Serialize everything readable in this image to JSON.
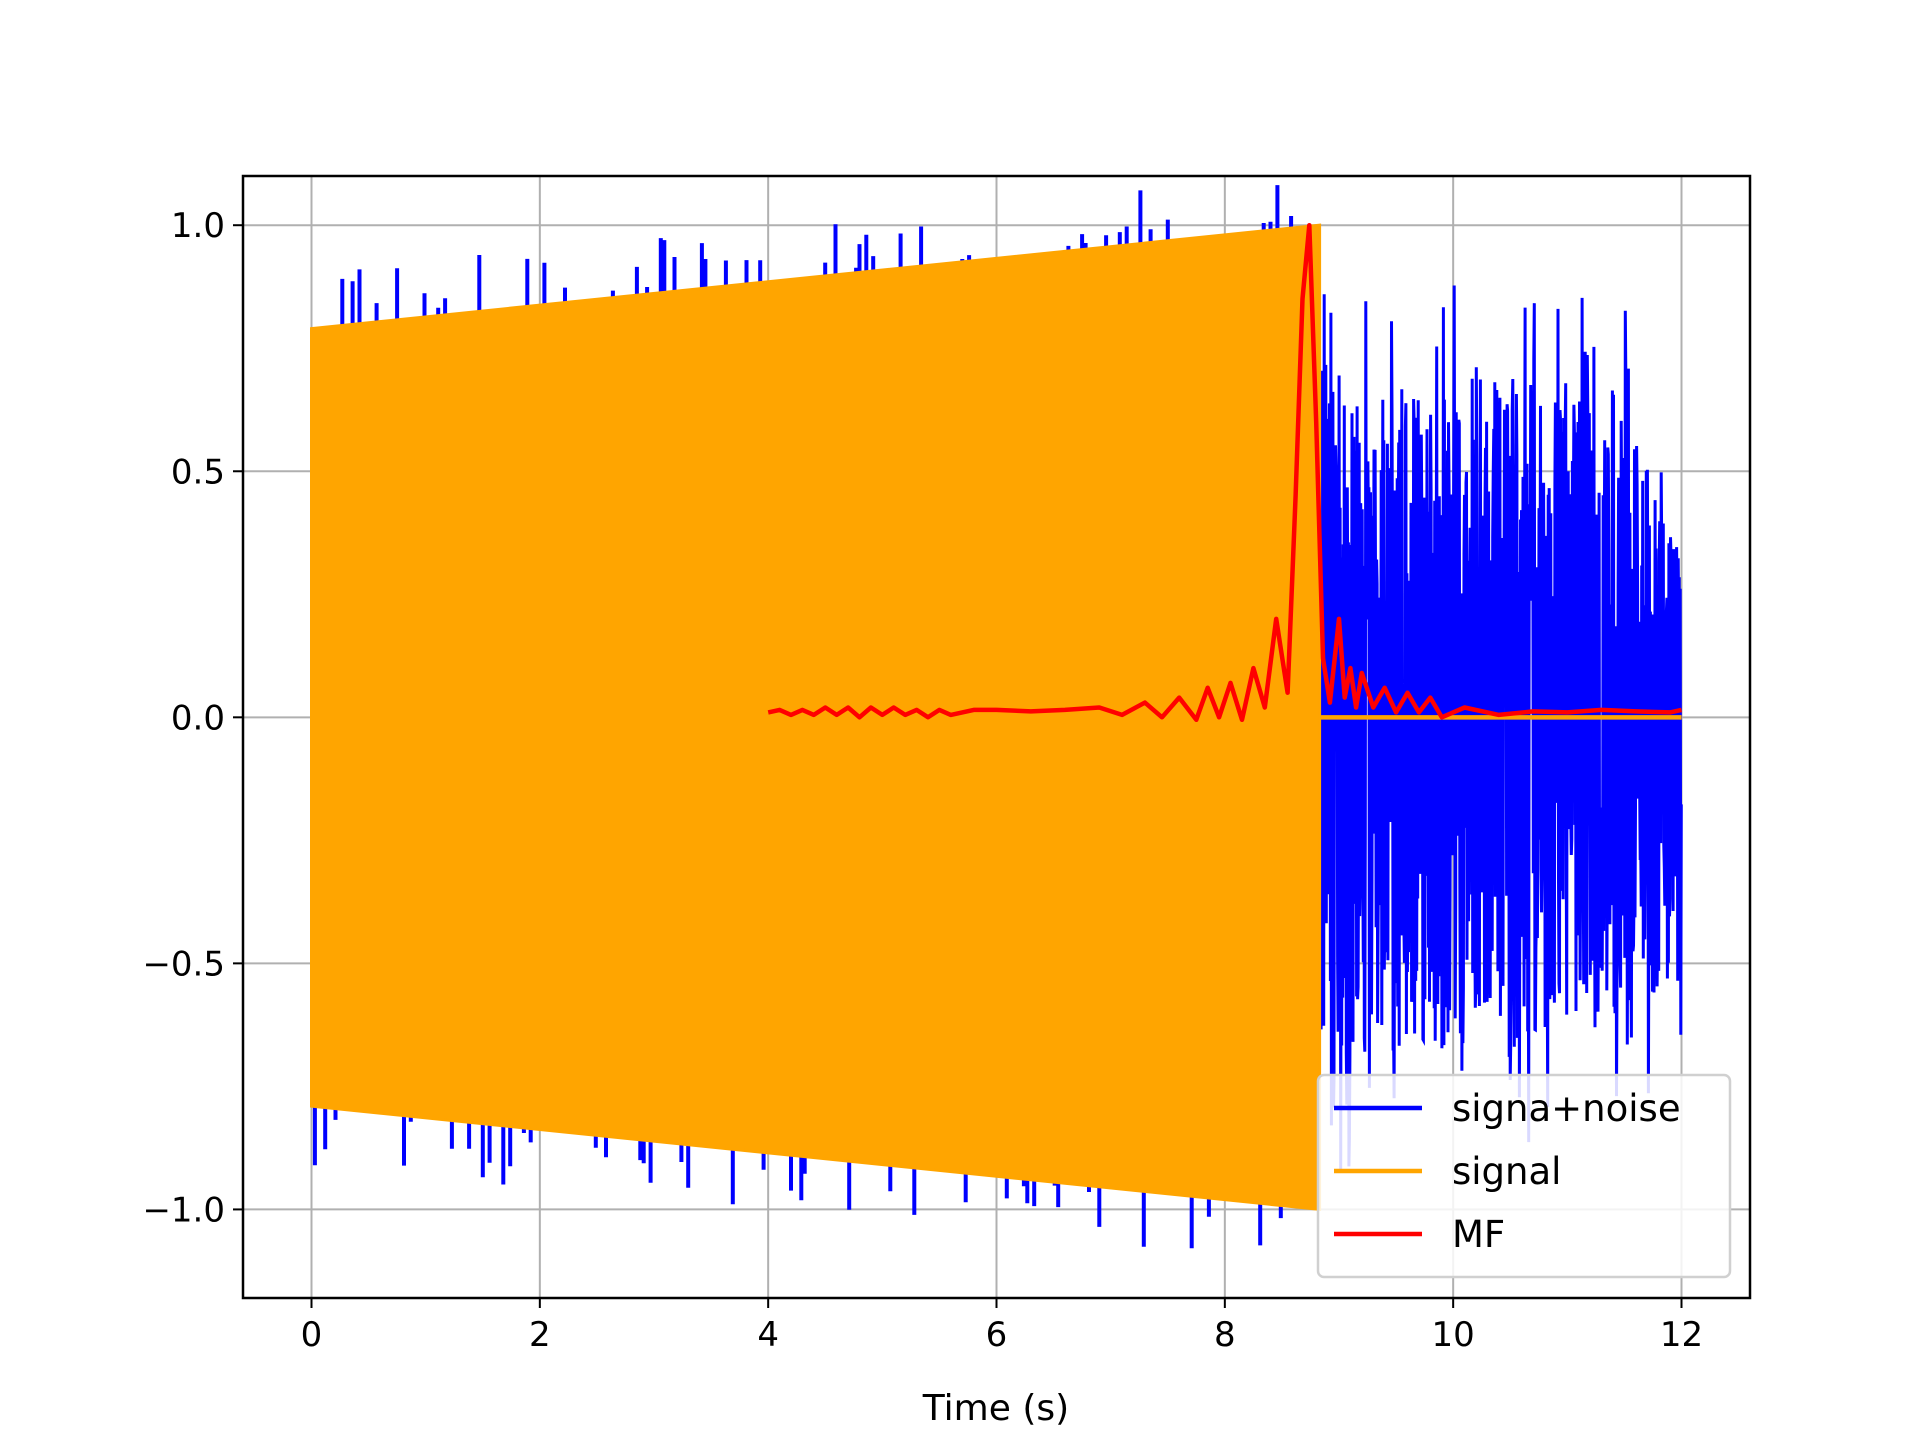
{
  "chart_data": {
    "type": "line",
    "title": "",
    "xlabel": "Time (s)",
    "ylabel": "",
    "xlim": [
      -0.6,
      12.6
    ],
    "ylim": [
      -1.18,
      1.1
    ],
    "xticks": [
      0,
      2,
      4,
      6,
      8,
      10,
      12
    ],
    "yticks": [
      -1.0,
      -0.5,
      0.0,
      0.5,
      1.0
    ],
    "xtick_labels": [
      "0",
      "2",
      "4",
      "6",
      "8",
      "10",
      "12"
    ],
    "ytick_labels": [
      "−1.0",
      "−0.5",
      "0.0",
      "0.5",
      "1.0"
    ],
    "grid": true,
    "legend_position": "bottom-right",
    "series": [
      {
        "name": "signa+noise",
        "color": "#0000ff",
        "description_values": {
          "t_range": [
            0,
            12
          ],
          "envelope_max": [
            [
              0,
              0.83
            ],
            [
              1.0,
              0.94
            ],
            [
              2.9,
              0.92
            ],
            [
              4.0,
              1.0
            ],
            [
              6.8,
              1.0
            ],
            [
              7.45,
              1.0
            ],
            [
              8.8,
              1.0
            ],
            [
              9.1,
              0.9
            ],
            [
              10.3,
              0.92
            ],
            [
              11.4,
              0.92
            ],
            [
              12.0,
              0.44
            ]
          ],
          "envelope_min": [
            [
              0,
              -0.82
            ],
            [
              1.5,
              -0.91
            ],
            [
              4.0,
              -1.0
            ],
            [
              6.5,
              -1.04
            ],
            [
              8.8,
              -1.0
            ],
            [
              9.5,
              -0.92
            ],
            [
              11.0,
              -0.88
            ],
            [
              12.0,
              -0.72
            ]
          ]
        }
      },
      {
        "name": "signal",
        "color": "#ffa500",
        "envelope": [
          [
            0,
            0.79
          ],
          [
            8.83,
            1.0
          ]
        ],
        "end_time": 8.83,
        "after_value": 0.0
      },
      {
        "name": "MF",
        "color": "#ff0000",
        "x": [
          4.0,
          4.1,
          4.2,
          4.3,
          4.4,
          4.5,
          4.6,
          4.7,
          4.8,
          4.9,
          5.0,
          5.1,
          5.2,
          5.3,
          5.4,
          5.5,
          5.6,
          5.8,
          6.0,
          6.3,
          6.6,
          6.9,
          7.1,
          7.3,
          7.45,
          7.6,
          7.75,
          7.85,
          7.95,
          8.05,
          8.15,
          8.25,
          8.35,
          8.45,
          8.55,
          8.62,
          8.68,
          8.74,
          8.8,
          8.86,
          8.92,
          9.0,
          9.05,
          9.1,
          9.15,
          9.2,
          9.3,
          9.4,
          9.5,
          9.6,
          9.7,
          9.8,
          9.9,
          10.1,
          10.4,
          10.7,
          11.0,
          11.3,
          11.6,
          11.9,
          12.0
        ],
        "y": [
          0.01,
          0.015,
          0.005,
          0.015,
          0.005,
          0.02,
          0.005,
          0.02,
          0.0,
          0.02,
          0.005,
          0.02,
          0.005,
          0.015,
          0.0,
          0.015,
          0.005,
          0.015,
          0.015,
          0.012,
          0.015,
          0.02,
          0.005,
          0.03,
          0.0,
          0.04,
          -0.005,
          0.06,
          0.0,
          0.07,
          -0.005,
          0.1,
          0.02,
          0.2,
          0.05,
          0.45,
          0.85,
          1.0,
          0.6,
          0.12,
          0.03,
          0.2,
          0.04,
          0.1,
          0.02,
          0.09,
          0.02,
          0.06,
          0.01,
          0.05,
          0.01,
          0.04,
          0.0,
          0.02,
          0.005,
          0.012,
          0.01,
          0.015,
          0.012,
          0.01,
          0.015
        ]
      }
    ]
  },
  "legend": {
    "items": [
      {
        "label": "signa+noise",
        "color": "#0000ff"
      },
      {
        "label": "signal",
        "color": "#ffa500"
      },
      {
        "label": "MF",
        "color": "#ff0000"
      }
    ]
  }
}
